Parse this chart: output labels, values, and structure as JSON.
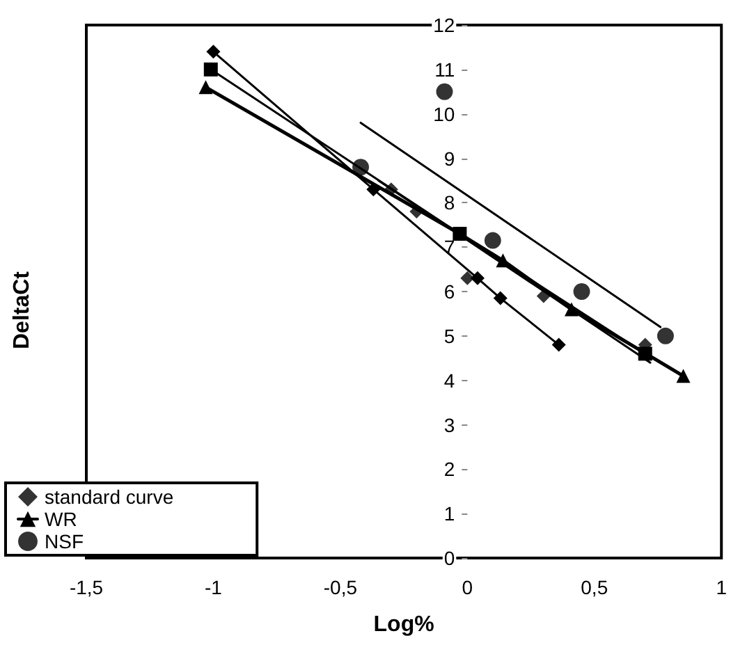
{
  "chart_data": {
    "type": "scatter",
    "xlabel": "Log%",
    "ylabel": "DeltaCt",
    "xlim": [
      -1.5,
      1
    ],
    "xticks": [
      {
        "value": -1.5,
        "label": "-1,5"
      },
      -1,
      {
        "value": -0.5,
        "label": "-0,5"
      },
      0,
      {
        "value": 0.5,
        "label": "0,5"
      },
      1
    ],
    "ylim": [
      0,
      12
    ],
    "yticks": [
      0,
      1,
      2,
      3,
      4,
      5,
      6,
      7,
      8,
      9,
      10,
      11,
      12
    ],
    "grid": false,
    "legend": "bottom left",
    "series": [
      {
        "name": "standard curve",
        "marker": "diamond",
        "color": "#000000",
        "x": [
          -0.3,
          -0.2,
          0,
          0.3,
          0.7
        ],
        "values": [
          8.3,
          7.8,
          6.3,
          5.9,
          4.8
        ]
      },
      {
        "name": "WR",
        "type": "line",
        "marker": "triangle",
        "color": "#000000",
        "x": [
          -1.03,
          -0.03,
          0.14,
          0.41,
          0.85
        ],
        "values": [
          10.6,
          7.3,
          6.7,
          5.6,
          4.1
        ]
      },
      {
        "type": "line",
        "marker": "square",
        "color": "#000000",
        "x": [
          -1.01,
          -0.03,
          0.7
        ],
        "values": [
          11.0,
          7.3,
          4.6
        ]
      },
      {
        "name": "NSF",
        "marker": "circle",
        "color": "#000000",
        "x": [
          -0.42,
          -0.09,
          0.1,
          0.45,
          0.78
        ],
        "values": [
          8.8,
          10.5,
          7.15,
          6.0,
          5.0
        ]
      },
      {
        "type": "line",
        "marker": "diamond",
        "color": "#000000",
        "x": [
          -1.0,
          -0.37,
          0.04,
          0.13,
          0.36
        ],
        "values": [
          11.4,
          8.3,
          6.3,
          5.85,
          4.8
        ]
      },
      {
        "type": "line",
        "marker": "none",
        "color": "#000000",
        "x": [
          -0.42,
          0.76
        ],
        "values": [
          9.8,
          5.2
        ]
      },
      {
        "type": "line",
        "marker": "none",
        "color": "#000000",
        "x": [
          -0.35,
          0.72
        ],
        "values": [
          8.5,
          4.4
        ]
      }
    ]
  }
}
